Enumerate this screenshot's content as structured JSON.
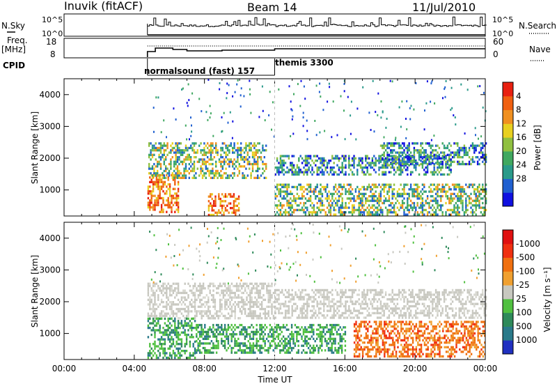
{
  "header": {
    "station": "Inuvik (fitACF)",
    "beam": "Beam 14",
    "date": "11/Jul/2010"
  },
  "top_panels": {
    "nsky_label": "N.Sky",
    "nsearch_label": "N.Search",
    "freq_label_1": "Freq.",
    "freq_label_2": "[MHz]",
    "nave_label": "Nave",
    "cpid_label": "CPID",
    "noise_ticks_left": [
      "10^5",
      "10^0"
    ],
    "noise_ticks_right": [
      "10^5",
      "10^0"
    ],
    "freq_ticks_left": [
      "18",
      "8"
    ],
    "nave_ticks_right": [
      "60",
      "0"
    ],
    "cpid_segments": [
      {
        "label": "normalsound (fast) 157",
        "start_hr": 4.75,
        "end_hr": 12.0
      },
      {
        "label": "themis 3300",
        "start_hr": 12.0,
        "end_hr": 24.0
      }
    ]
  },
  "chart_data": [
    {
      "type": "heatmap",
      "title": "Power",
      "ylabel": "Slant Range [km]",
      "ylim": [
        180,
        4500
      ],
      "yticks": [
        "1000",
        "2000",
        "3000",
        "4000"
      ],
      "xlim_hours": [
        0,
        24
      ],
      "colorbar": {
        "label": "Power [dB]",
        "ticks": [
          "4",
          "8",
          "12",
          "16",
          "20",
          "24",
          "28"
        ],
        "colors": [
          "#1010e0",
          "#2060d0",
          "#2a9a8a",
          "#40a860",
          "#90c040",
          "#e8d020",
          "#f09020",
          "#f06010",
          "#e82010"
        ]
      },
      "data_start_hr": 4.75,
      "echo_regions": [
        {
          "t0": 4.75,
          "t1": 6.5,
          "r0": 300,
          "r1": 1500,
          "level": "high"
        },
        {
          "t0": 8.2,
          "t1": 10.0,
          "r0": 180,
          "r1": 900,
          "level": "high"
        },
        {
          "t0": 4.8,
          "t1": 11.5,
          "r0": 1400,
          "r1": 2500,
          "level": "mid"
        },
        {
          "t0": 12.0,
          "t1": 22.0,
          "r0": 1500,
          "r1": 2100,
          "level": "low"
        },
        {
          "t0": 12.0,
          "t1": 24.0,
          "r0": 200,
          "r1": 1200,
          "level": "mid"
        },
        {
          "t0": 18.0,
          "t1": 24.0,
          "r0": 1800,
          "r1": 2500,
          "level": "low"
        }
      ]
    },
    {
      "type": "heatmap",
      "title": "Velocity",
      "ylabel": "Slant Range [km]",
      "ylim": [
        180,
        4500
      ],
      "yticks": [
        "1000",
        "2000",
        "3000",
        "4000"
      ],
      "xticks": [
        "00:00",
        "04:00",
        "08:00",
        "12:00",
        "16:00",
        "20:00",
        "00:00"
      ],
      "xlabel": "Time UT",
      "colorbar": {
        "label": "Velocity [m s⁻¹]",
        "ticks": [
          "1000",
          "500",
          "100",
          "25",
          "-25",
          "-100",
          "-500",
          "-1000"
        ],
        "colors": [
          "#2030c0",
          "#2a7a8a",
          "#2e8a5a",
          "#50c040",
          "#c8c8c0",
          "#f0a030",
          "#f07010",
          "#f03010",
          "#e01010"
        ]
      },
      "data_start_hr": 4.75,
      "echo_regions": [
        {
          "t0": 4.75,
          "t1": 12.0,
          "r0": 1500,
          "r1": 2600,
          "level": "ground"
        },
        {
          "t0": 12.0,
          "t1": 24.0,
          "r0": 1500,
          "r1": 2400,
          "level": "ground"
        },
        {
          "t0": 4.75,
          "t1": 7.5,
          "r0": 250,
          "r1": 1500,
          "level": "positive"
        },
        {
          "t0": 7.5,
          "t1": 16.0,
          "r0": 400,
          "r1": 1300,
          "level": "positive"
        },
        {
          "t0": 16.5,
          "t1": 24.0,
          "r0": 300,
          "r1": 1400,
          "level": "negative"
        }
      ]
    }
  ]
}
